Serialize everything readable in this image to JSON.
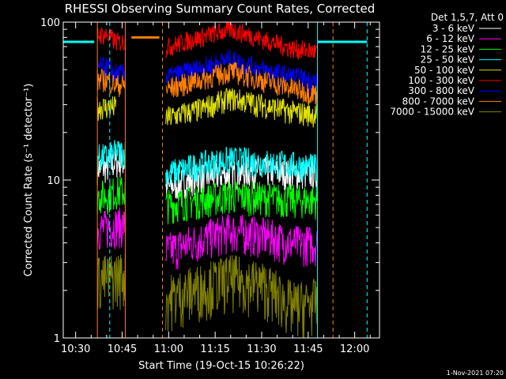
{
  "chart_data": {
    "type": "line",
    "title": "RHESSI Observing Summary Count Rates, Corrected",
    "ylabel": "Corrected Count Rate (s⁻¹ detector⁻¹)",
    "xlabel": "Start Time (19-Oct-15 10:26:22)",
    "footer_date": "1-Nov-2021 07:20",
    "y_scale": "log",
    "ylim": [
      1,
      100
    ],
    "y_ticks": [
      1,
      10,
      100
    ],
    "y_tick_labels": [
      "1",
      "10",
      "100"
    ],
    "xlim": [
      "10:26",
      "12:08"
    ],
    "x_ticks": [
      "10:30",
      "10:45",
      "11:00",
      "11:15",
      "11:30",
      "11:45",
      "12:00"
    ],
    "legend_title": "Det 1,5,7, Att 0",
    "legend_position": "top-right",
    "data_gaps": [
      [
        "10:47",
        "10:59"
      ],
      [
        "11:48",
        "12:08"
      ]
    ],
    "series": [
      {
        "name": "3 - 6 keV",
        "color": "#ffffff",
        "times": [
          "10:37",
          "10:40",
          "10:43",
          "10:46",
          "11:00",
          "11:10",
          "11:20",
          "11:30",
          "11:40",
          "11:48"
        ],
        "values": [
          null,
          12,
          13,
          null,
          9,
          10.5,
          11,
          11.5,
          11,
          11
        ]
      },
      {
        "name": "6 - 12 keV",
        "color": "#ff00ff",
        "times": [
          "10:37",
          "10:40",
          "10:43",
          "10:46",
          "11:00",
          "11:10",
          "11:20",
          "11:30",
          "11:40",
          "11:48"
        ],
        "values": [
          null,
          5,
          5.2,
          null,
          3.6,
          4.2,
          4.8,
          4.5,
          4,
          4
        ]
      },
      {
        "name": "12 - 25 keV",
        "color": "#00ff00",
        "times": [
          "10:37",
          "10:40",
          "10:43",
          "10:46",
          "11:00",
          "11:10",
          "11:20",
          "11:30",
          "11:40",
          "11:48"
        ],
        "values": [
          null,
          8,
          8.5,
          null,
          7,
          7.5,
          8,
          7.8,
          7.5,
          7.5
        ]
      },
      {
        "name": "25 - 50 keV",
        "color": "#00ffff",
        "times": [
          "10:37",
          "10:40",
          "10:43",
          "10:46",
          "11:00",
          "11:10",
          "11:20",
          "11:30",
          "11:40",
          "11:48"
        ],
        "values": [
          null,
          14,
          15,
          null,
          11,
          12.5,
          13.5,
          13,
          12.5,
          12
        ]
      },
      {
        "name": "50 - 100 keV",
        "color": "#e0e000",
        "times": [
          "10:37",
          "10:40",
          "10:43",
          "10:46",
          "11:00",
          "11:10",
          "11:20",
          "11:30",
          "11:40",
          "11:48"
        ],
        "values": [
          null,
          29,
          null,
          null,
          25,
          28,
          33,
          30,
          27,
          26
        ]
      },
      {
        "name": "100 - 300 keV",
        "color": "#ff0000",
        "times": [
          "10:37",
          "10:40",
          "10:43",
          "10:46",
          "11:00",
          "11:10",
          "11:20",
          "11:30",
          "11:40",
          "11:48"
        ],
        "values": [
          null,
          83,
          75,
          null,
          70,
          80,
          90,
          78,
          68,
          65
        ]
      },
      {
        "name": "300 - 800 keV",
        "color": "#0000ff",
        "times": [
          "10:37",
          "10:40",
          "10:43",
          "10:46",
          "11:00",
          "11:10",
          "11:20",
          "11:30",
          "11:40",
          "11:48"
        ],
        "values": [
          null,
          52,
          47,
          null,
          45,
          51,
          58,
          50,
          45,
          42
        ]
      },
      {
        "name": "800 - 7000 keV",
        "color": "#ff8000",
        "times": [
          "10:37",
          "10:40",
          "10:43",
          "10:46",
          "11:00",
          "11:10",
          "11:20",
          "11:30",
          "11:40",
          "11:48"
        ],
        "values": [
          null,
          43,
          40,
          null,
          38,
          43,
          49,
          43,
          38,
          35
        ]
      },
      {
        "name": "7000 - 15000 keV",
        "color": "#808000",
        "times": [
          "10:37",
          "10:40",
          "10:43",
          "10:46",
          "11:00",
          "11:10",
          "11:20",
          "11:30",
          "11:40",
          "11:48"
        ],
        "values": [
          null,
          2.4,
          2.5,
          null,
          1.8,
          2.1,
          2.4,
          2.2,
          1.6,
          1.7
        ]
      }
    ],
    "markers": [
      {
        "time": "10:37",
        "style": "solid",
        "color": "#ff8000"
      },
      {
        "time": "10:41",
        "style": "dashed",
        "color": "#00ffff"
      },
      {
        "time": "10:46",
        "style": "solid",
        "color": "#ff8000"
      },
      {
        "time": "10:58",
        "style": "dashed",
        "color": "#ff8000"
      },
      {
        "time": "11:48",
        "style": "solid",
        "color": "#00ffff"
      },
      {
        "time": "11:53",
        "style": "dashed",
        "color": "#ff8000"
      },
      {
        "time": "12:04",
        "style": "dashed",
        "color": "#00ffff"
      }
    ],
    "orange_bar": {
      "from": "10:48",
      "to": "10:57",
      "value": 80
    }
  }
}
